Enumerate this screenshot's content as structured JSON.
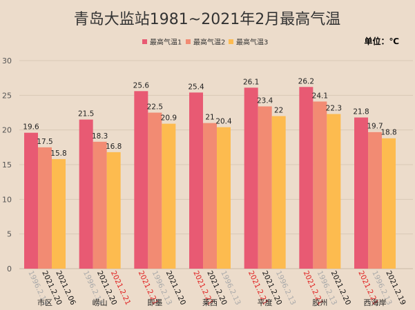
{
  "chart_data": {
    "type": "bar",
    "title": "青岛大监站1981~2021年2月最高气温",
    "unit_label": "单位：℃",
    "ylim": [
      0,
      30
    ],
    "yticks": [
      0,
      5,
      10,
      15,
      20,
      25,
      30
    ],
    "grid": true,
    "legend_position": "top",
    "categories": [
      "市区",
      "崂山",
      "即墨",
      "莱西",
      "平度",
      "胶州",
      "西海岸"
    ],
    "series": [
      {
        "name": "最高气温1",
        "color": "#e85a73",
        "values": [
          19.6,
          21.5,
          25.6,
          25.4,
          26.1,
          26.2,
          21.8
        ]
      },
      {
        "name": "最高气温2",
        "color": "#f28b73",
        "values": [
          17.5,
          18.3,
          22.5,
          21,
          23.4,
          24.1,
          19.7
        ]
      },
      {
        "name": "最高气温3",
        "color": "#fdbb4f",
        "values": [
          15.8,
          16.8,
          20.9,
          20.4,
          22,
          22.3,
          18.8
        ]
      }
    ],
    "date_labels": [
      [
        "1996.2.13",
        "2021.2.20",
        "2021.2.06"
      ],
      [
        "1996.2.13",
        "2021.2.20",
        "2021.2.21"
      ],
      [
        "2021.2.21",
        "1996.2.13",
        "2021.2.20"
      ],
      [
        "2021.2.21",
        "2021.2.20",
        "1996.2.13"
      ],
      [
        "2021.2.21",
        "2021.2.20",
        "1996.2.13"
      ],
      [
        "2021.2.21",
        "1996.2.13",
        "2021.2.20"
      ],
      [
        "2021.2.21",
        "1996.2.13",
        "2021.2.19"
      ]
    ],
    "date_label_colors": {
      "2021.2.21": "#e02020",
      "1996.2.13": "#aaaaaa",
      "other": "#111111"
    }
  }
}
